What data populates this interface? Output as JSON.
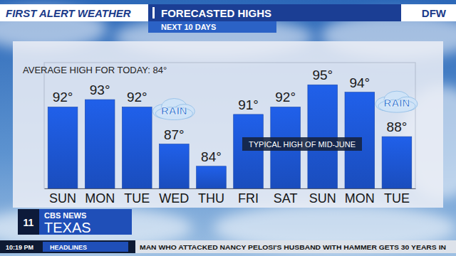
{
  "header": {
    "brand": "FIRST ALERT WEATHER",
    "location": "DFW"
  },
  "chart_data": {
    "type": "bar",
    "title": "FORECASTED HIGHS",
    "subtitle": "NEXT 10 DAYS",
    "annotations": [
      {
        "text": "AVERAGE HIGH FOR TODAY: 84°"
      },
      {
        "text": "RAIN",
        "x": 3
      },
      {
        "text": "RAIN",
        "x": 9
      },
      {
        "text": "TYPICAL HIGH OF MID-JUNE"
      }
    ],
    "categories": [
      "SUN",
      "MON",
      "TUE",
      "WED",
      "THU",
      "FRI",
      "SAT",
      "SUN",
      "MON",
      "TUE"
    ],
    "values": [
      92,
      93,
      92,
      87,
      84,
      91,
      92,
      95,
      94,
      88
    ],
    "value_labels": [
      "92°",
      "93°",
      "92°",
      "87°",
      "84°",
      "91°",
      "92°",
      "95°",
      "94°",
      "88°"
    ],
    "data_labels": true,
    "color": "#1d56d2",
    "ylim": [
      81,
      98
    ],
    "tick_labels": "x",
    "grid": false
  },
  "footer": {
    "channel": "11",
    "network": "CBS NEWS",
    "station": "TEXAS",
    "time": "10:19 PM",
    "section": "HEADLINES",
    "ticker": "MAN WHO ATTACKED NANCY PELOSI'S HUSBAND WITH HAMMER GETS 30 YEARS IN"
  }
}
